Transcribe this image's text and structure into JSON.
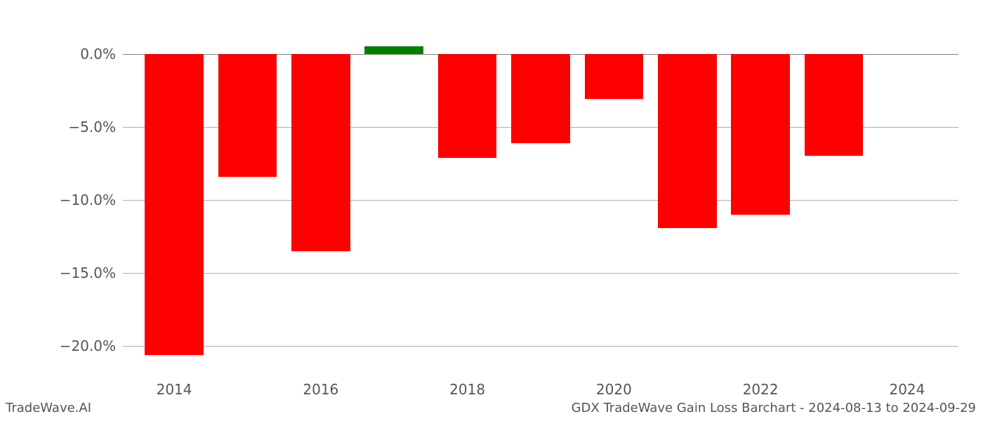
{
  "chart": {
    "type": "bar",
    "years": [
      2014,
      2015,
      2016,
      2017,
      2018,
      2019,
      2020,
      2021,
      2022,
      2023
    ],
    "values": [
      -20.6,
      -8.4,
      -13.5,
      0.5,
      -7.1,
      -6.1,
      -3.1,
      -11.9,
      -11.0,
      -7.0
    ],
    "bar_colors": [
      "#ff0000",
      "#ff0000",
      "#ff0000",
      "#008000",
      "#ff0000",
      "#ff0000",
      "#ff0000",
      "#ff0000",
      "#ff0000",
      "#ff0000"
    ],
    "x_ticks": [
      2014,
      2016,
      2018,
      2020,
      2022,
      2024
    ],
    "x_tick_labels": [
      "2014",
      "2016",
      "2018",
      "2020",
      "2022",
      "2024"
    ],
    "y_ticks": [
      0,
      -5,
      -10,
      -15,
      -20
    ],
    "y_tick_labels": [
      "0.0%",
      "−5.0%",
      "−10.0%",
      "−15.0%",
      "−20.0%"
    ],
    "ylim_min": -22.0,
    "ylim_max": 2.0,
    "xlim_min": 2013.3,
    "xlim_max": 2024.7,
    "bar_width_years": 0.8,
    "background_color": "#ffffff",
    "grid_color": "#b0b0b0",
    "tick_label_fontsize": 20,
    "tick_label_color": "#555555",
    "footer_fontsize": 18,
    "footer_color": "#555555"
  },
  "footer_left": "TradeWave.AI",
  "footer_right": "GDX TradeWave Gain Loss Barchart - 2024-08-13 to 2024-09-29"
}
